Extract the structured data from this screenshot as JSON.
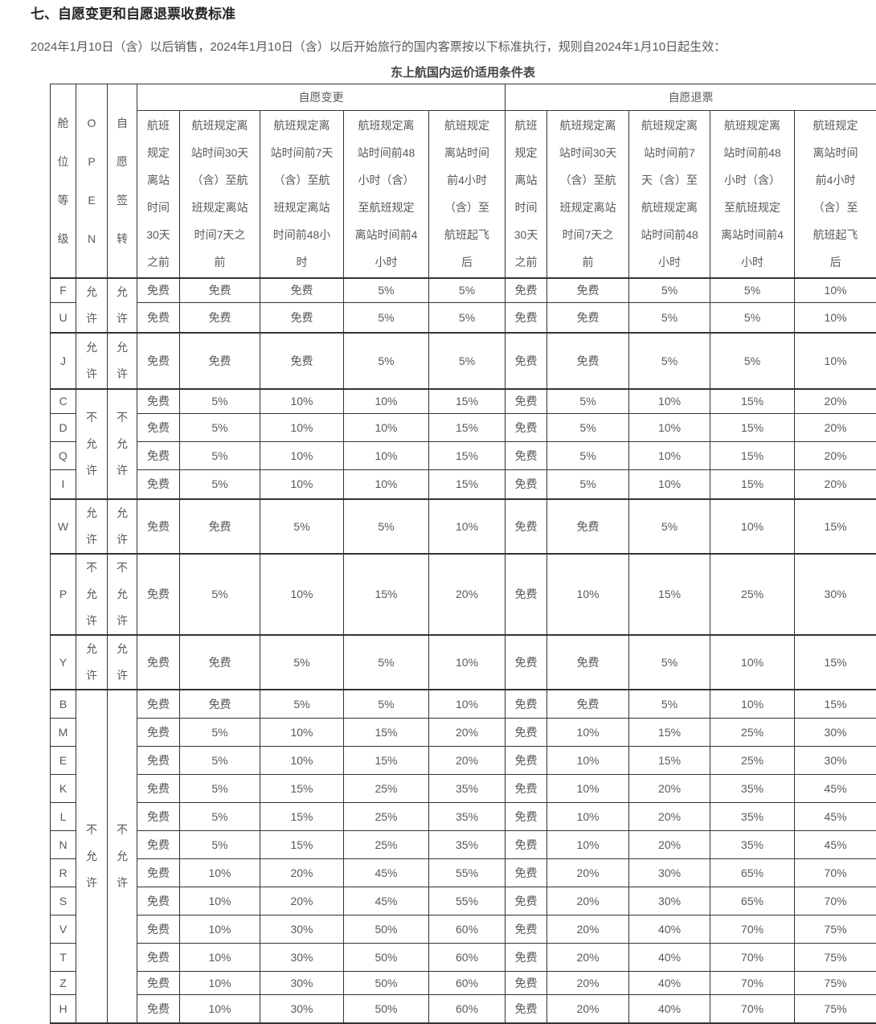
{
  "title": "七、自愿变更和自愿退票收费标准",
  "intro": "2024年1月10日（含）以后销售，2024年1月10日（含）以后开始旅行的国内客票按以下标准执行，规则自2024年1月10日起生效：",
  "table_title": "东上航国内运价适用条件表",
  "table": {
    "corner_headers": {
      "cabin_class": "舱位等级",
      "open": "OPEN",
      "endorse": "自愿签转"
    },
    "group_headers": {
      "change": "自愿变更",
      "refund": "自愿退票"
    },
    "period_headers": [
      "航班规定离站时间30天之前",
      "航班规定离站时间30天（含）至航班规定离站时间7天之前",
      "航班规定离站时间前7天（含）至航班规定离站时间前48小时",
      "航班规定离站时间前48小时（含）至航班规定离站时间前4小时",
      "航班规定离站时间前4小时（含）至航班起飞后"
    ],
    "free_label": "免费",
    "allowed_label": "允许",
    "not_allowed_label": "不允许",
    "groups": [
      {
        "open": "允许",
        "endorse": "允许",
        "rows": [
          {
            "cabin": "F",
            "change": [
              "免费",
              "免费",
              "免费",
              "5%",
              "5%"
            ],
            "refund": [
              "免费",
              "免费",
              "5%",
              "5%",
              "10%"
            ]
          },
          {
            "cabin": "U",
            "change": [
              "免费",
              "免费",
              "免费",
              "5%",
              "5%"
            ],
            "refund": [
              "免费",
              "免费",
              "5%",
              "5%",
              "10%"
            ]
          }
        ]
      },
      {
        "open": "允许",
        "endorse": "允许",
        "rows": [
          {
            "cabin": "J",
            "change": [
              "免费",
              "免费",
              "免费",
              "5%",
              "5%"
            ],
            "refund": [
              "免费",
              "免费",
              "5%",
              "5%",
              "10%"
            ]
          }
        ]
      },
      {
        "open": "不允许",
        "endorse": "不允许",
        "rows": [
          {
            "cabin": "C",
            "change": [
              "免费",
              "5%",
              "10%",
              "10%",
              "15%"
            ],
            "refund": [
              "免费",
              "5%",
              "10%",
              "15%",
              "20%"
            ]
          },
          {
            "cabin": "D",
            "change": [
              "免费",
              "5%",
              "10%",
              "10%",
              "15%"
            ],
            "refund": [
              "免费",
              "5%",
              "10%",
              "15%",
              "20%"
            ]
          },
          {
            "cabin": "Q",
            "change": [
              "免费",
              "5%",
              "10%",
              "10%",
              "15%"
            ],
            "refund": [
              "免费",
              "5%",
              "10%",
              "15%",
              "20%"
            ]
          },
          {
            "cabin": "I",
            "change": [
              "免费",
              "5%",
              "10%",
              "10%",
              "15%"
            ],
            "refund": [
              "免费",
              "5%",
              "10%",
              "15%",
              "20%"
            ]
          }
        ]
      },
      {
        "open": "允许",
        "endorse": "允许",
        "rows": [
          {
            "cabin": "W",
            "change": [
              "免费",
              "免费",
              "5%",
              "5%",
              "10%"
            ],
            "refund": [
              "免费",
              "免费",
              "5%",
              "10%",
              "15%"
            ]
          }
        ]
      },
      {
        "open": "不允许",
        "endorse": "不允许",
        "rows": [
          {
            "cabin": "P",
            "change": [
              "免费",
              "5%",
              "10%",
              "15%",
              "20%"
            ],
            "refund": [
              "免费",
              "10%",
              "15%",
              "25%",
              "30%"
            ]
          }
        ]
      },
      {
        "open": "允许",
        "endorse": "允许",
        "rows": [
          {
            "cabin": "Y",
            "change": [
              "免费",
              "免费",
              "5%",
              "5%",
              "10%"
            ],
            "refund": [
              "免费",
              "免费",
              "5%",
              "10%",
              "15%"
            ]
          }
        ]
      },
      {
        "open": "不允许",
        "endorse": "不允许",
        "rows": [
          {
            "cabin": "B",
            "change": [
              "免费",
              "免费",
              "5%",
              "5%",
              "10%"
            ],
            "refund": [
              "免费",
              "免费",
              "5%",
              "10%",
              "15%"
            ]
          },
          {
            "cabin": "M",
            "change": [
              "免费",
              "5%",
              "10%",
              "15%",
              "20%"
            ],
            "refund": [
              "免费",
              "10%",
              "15%",
              "25%",
              "30%"
            ]
          },
          {
            "cabin": "E",
            "change": [
              "免费",
              "5%",
              "10%",
              "15%",
              "20%"
            ],
            "refund": [
              "免费",
              "10%",
              "15%",
              "25%",
              "30%"
            ]
          },
          {
            "cabin": "K",
            "change": [
              "免费",
              "5%",
              "15%",
              "25%",
              "35%"
            ],
            "refund": [
              "免费",
              "10%",
              "20%",
              "35%",
              "45%"
            ]
          },
          {
            "cabin": "L",
            "change": [
              "免费",
              "5%",
              "15%",
              "25%",
              "35%"
            ],
            "refund": [
              "免费",
              "10%",
              "20%",
              "35%",
              "45%"
            ]
          },
          {
            "cabin": "N",
            "change": [
              "免费",
              "5%",
              "15%",
              "25%",
              "35%"
            ],
            "refund": [
              "免费",
              "10%",
              "20%",
              "35%",
              "45%"
            ]
          },
          {
            "cabin": "R",
            "change": [
              "免费",
              "10%",
              "20%",
              "45%",
              "55%"
            ],
            "refund": [
              "免费",
              "20%",
              "30%",
              "65%",
              "70%"
            ]
          },
          {
            "cabin": "S",
            "change": [
              "免费",
              "10%",
              "20%",
              "45%",
              "55%"
            ],
            "refund": [
              "免费",
              "20%",
              "30%",
              "65%",
              "70%"
            ]
          },
          {
            "cabin": "V",
            "change": [
              "免费",
              "10%",
              "30%",
              "50%",
              "60%"
            ],
            "refund": [
              "免费",
              "20%",
              "40%",
              "70%",
              "75%"
            ]
          },
          {
            "cabin": "T",
            "change": [
              "免费",
              "10%",
              "30%",
              "50%",
              "60%"
            ],
            "refund": [
              "免费",
              "20%",
              "40%",
              "70%",
              "75%"
            ]
          },
          {
            "cabin": "Z",
            "change": [
              "免费",
              "10%",
              "30%",
              "50%",
              "60%"
            ],
            "refund": [
              "免费",
              "20%",
              "40%",
              "70%",
              "75%"
            ]
          },
          {
            "cabin": "H",
            "change": [
              "免费",
              "10%",
              "30%",
              "50%",
              "60%"
            ],
            "refund": [
              "免费",
              "20%",
              "40%",
              "70%",
              "75%"
            ]
          }
        ]
      }
    ]
  }
}
